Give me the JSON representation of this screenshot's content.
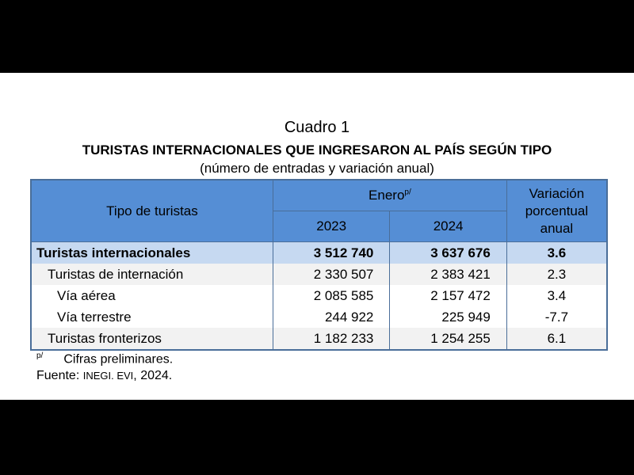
{
  "title": "Cuadro 1",
  "heading": "TURISTAS INTERNACIONALES QUE INGRESARON AL PAÍS SEGÚN TIPO",
  "subheading": "(número de entradas y variación anual)",
  "header": {
    "type": "Tipo de turistas",
    "period": "Enero",
    "period_mark": "p/",
    "years": [
      "2023",
      "2024"
    ],
    "variation": "Variación porcentual anual"
  },
  "rows": [
    {
      "label": "Turistas internacionales",
      "y2023": "3 512 740",
      "y2024": "3 637 676",
      "var": "3.6"
    },
    {
      "label": "Turistas de internación",
      "y2023": "2 330 507",
      "y2024": "2 383 421",
      "var": "2.3"
    },
    {
      "label": "Vía aérea",
      "y2023": "2 085 585",
      "y2024": "2 157 472",
      "var": "3.4"
    },
    {
      "label": "Vía terrestre",
      "y2023": "244 922",
      "y2024": "225 949",
      "var": "-7.7"
    },
    {
      "label": "Turistas fronterizos",
      "y2023": "1 182 233",
      "y2024": "1 254 255",
      "var": "6.1"
    }
  ],
  "notes": {
    "mark": "p/",
    "preliminary": "Cifras preliminares.",
    "source_label": "Fuente:",
    "source": "INEGI. EVI",
    "source_year": ", 2024."
  },
  "colors": {
    "header": "#558ed5",
    "total_row": "#c6d9f1"
  }
}
